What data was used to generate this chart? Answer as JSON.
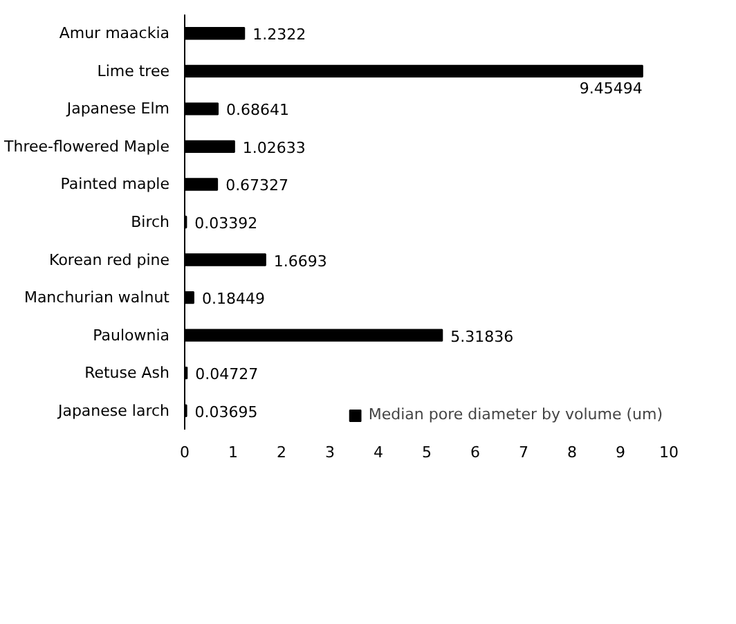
{
  "chart_data": {
    "type": "bar",
    "orientation": "horizontal",
    "categories": [
      "Amur maackia",
      "Lime tree",
      "Japanese Elm",
      "Three-flowered Maple",
      "Painted maple",
      "Birch",
      "Korean red pine",
      "Manchurian walnut",
      "Paulownia",
      "Retuse Ash",
      "Japanese larch"
    ],
    "series": [
      {
        "name": "Median pore diameter by volume (um)",
        "color": "#000000",
        "values": [
          1.2322,
          9.45494,
          0.68641,
          1.02633,
          0.67327,
          0.03392,
          1.6693,
          0.18449,
          5.31836,
          0.04727,
          0.03695
        ]
      }
    ],
    "xlim": [
      0,
      10
    ],
    "xticks": [
      0,
      1,
      2,
      3,
      4,
      5,
      6,
      7,
      8,
      9,
      10
    ],
    "data_labels": true,
    "grid": false,
    "legend": "bottom"
  }
}
